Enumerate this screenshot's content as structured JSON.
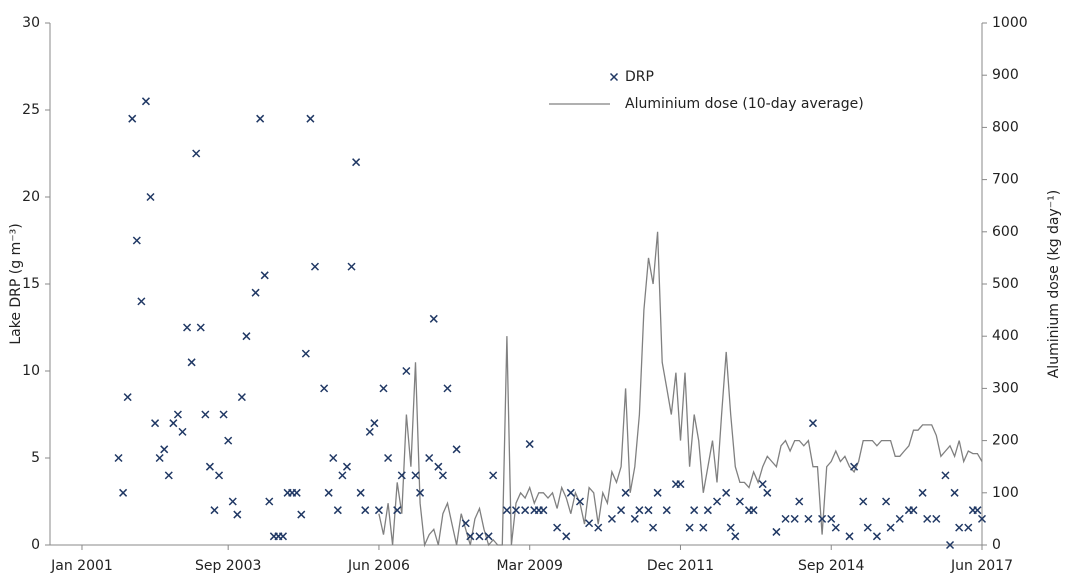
{
  "chart_data": {
    "type": "scatter",
    "ylabel": "Lake DRP (g m⁻³)",
    "y2label": "Aluminium dose (kg day⁻¹)",
    "xlim": [
      "2000-06",
      "2017-06"
    ],
    "xticks": [
      {
        "value": "2001-01",
        "label": "Jan 2001"
      },
      {
        "value": "2003-09",
        "label": "Sep 2003"
      },
      {
        "value": "2006-06",
        "label": "Jun 2006"
      },
      {
        "value": "2009-03",
        "label": "Mar 2009"
      },
      {
        "value": "2011-12",
        "label": "Dec 2011"
      },
      {
        "value": "2014-09",
        "label": "Sep 2014"
      },
      {
        "value": "2017-06",
        "label": "Jun 2017"
      }
    ],
    "ylim": [
      0,
      30
    ],
    "yticks": [
      0,
      5,
      10,
      15,
      20,
      25,
      30
    ],
    "y2lim": [
      0,
      1000
    ],
    "y2ticks": [
      0,
      100,
      200,
      300,
      400,
      500,
      600,
      700,
      800,
      900,
      1000
    ],
    "grid": false,
    "legend": "top",
    "series": [
      {
        "name": "DRP",
        "type": "scatter",
        "marker": "x",
        "color": "#203864",
        "x": [
          "2001-09",
          "2001-10",
          "2001-11",
          "2001-12",
          "2002-01",
          "2002-02",
          "2002-03",
          "2002-04",
          "2002-05",
          "2002-06",
          "2002-07",
          "2002-08",
          "2002-09",
          "2002-10",
          "2002-11",
          "2002-12",
          "2003-01",
          "2003-02",
          "2003-03",
          "2003-04",
          "2003-05",
          "2003-06",
          "2003-07",
          "2003-08",
          "2003-09",
          "2003-10",
          "2003-11",
          "2003-12",
          "2004-01",
          "2004-03",
          "2004-04",
          "2004-05",
          "2004-06",
          "2004-07",
          "2004-08",
          "2004-09",
          "2004-10",
          "2004-11",
          "2004-12",
          "2005-01",
          "2005-02",
          "2005-03",
          "2005-04",
          "2005-06",
          "2005-07",
          "2005-08",
          "2005-09",
          "2005-10",
          "2005-11",
          "2005-12",
          "2006-01",
          "2006-02",
          "2006-03",
          "2006-04",
          "2006-05",
          "2006-06",
          "2006-07",
          "2006-08",
          "2006-10",
          "2006-11",
          "2006-12",
          "2007-02",
          "2007-03",
          "2007-05",
          "2007-06",
          "2007-07",
          "2007-08",
          "2007-09",
          "2007-11",
          "2008-01",
          "2008-02",
          "2008-04",
          "2008-06",
          "2008-07",
          "2008-10",
          "2008-12",
          "2009-02",
          "2009-03",
          "2009-04",
          "2009-05",
          "2009-06",
          "2009-09",
          "2009-11",
          "2009-12",
          "2010-02",
          "2010-04",
          "2010-06",
          "2010-09",
          "2010-11",
          "2010-12",
          "2011-02",
          "2011-03",
          "2011-05",
          "2011-06",
          "2011-07",
          "2011-09",
          "2011-11",
          "2011-12",
          "2012-02",
          "2012-03",
          "2012-05",
          "2012-06",
          "2012-08",
          "2012-10",
          "2012-11",
          "2012-12",
          "2013-01",
          "2013-03",
          "2013-04",
          "2013-06",
          "2013-07",
          "2013-09",
          "2013-11",
          "2014-01",
          "2014-02",
          "2014-04",
          "2014-05",
          "2014-07",
          "2014-09",
          "2014-10",
          "2015-01",
          "2015-02",
          "2015-04",
          "2015-05",
          "2015-07",
          "2015-09",
          "2015-10",
          "2015-12",
          "2016-02",
          "2016-03",
          "2016-05",
          "2016-06",
          "2016-08",
          "2016-10",
          "2016-11",
          "2016-12",
          "2017-01",
          "2017-03",
          "2017-04",
          "2017-05",
          "2017-06"
        ],
        "values": [
          5,
          3,
          8.5,
          24.5,
          17.5,
          14,
          25.5,
          20,
          7,
          5,
          5.5,
          4,
          7,
          7.5,
          6.5,
          12.5,
          10.5,
          22.5,
          12.5,
          7.5,
          4.5,
          2,
          4,
          7.5,
          6,
          2.5,
          1.75,
          8.5,
          12,
          14.5,
          24.5,
          15.5,
          2.5,
          0.5,
          0.5,
          0.5,
          3,
          3,
          3,
          1.75,
          11,
          24.5,
          16,
          9,
          3,
          5,
          2,
          4,
          4.5,
          16,
          22,
          3,
          2,
          6.5,
          7,
          2,
          9,
          5,
          2,
          4,
          10,
          4,
          3,
          5,
          13,
          4.5,
          4,
          9,
          5.5,
          1.25,
          0.5,
          0.5,
          0.5,
          4,
          2,
          2,
          2,
          5.8,
          2,
          2,
          2,
          1,
          0.5,
          3,
          2.5,
          1.25,
          1,
          1.5,
          2,
          3,
          1.5,
          2,
          2,
          1,
          3,
          2,
          3.5,
          3.5,
          1,
          2,
          1,
          2,
          2.5,
          3,
          1,
          0.5,
          2.5,
          2,
          2,
          3.5,
          3,
          0.75,
          1.5,
          1.5,
          2.5,
          1.5,
          7,
          1.5,
          1.5,
          1,
          0.5,
          4.5,
          2.5,
          1,
          0.5,
          2.5,
          1,
          1.5,
          2,
          2,
          3,
          1.5,
          1.5,
          4,
          0,
          3,
          1,
          1,
          2,
          2,
          1.5
        ]
      },
      {
        "name": "Aluminium dose (10-day average)",
        "type": "line",
        "axis": "y2",
        "color": "#808080",
        "x": [
          "2006-06",
          "2006-07",
          "2006-08",
          "2006-09",
          "2006-10",
          "2006-11",
          "2006-12",
          "2007-01",
          "2007-02",
          "2007-03",
          "2007-04",
          "2007-05",
          "2007-06",
          "2007-07",
          "2007-08",
          "2007-09",
          "2007-10",
          "2007-11",
          "2007-12",
          "2008-01",
          "2008-02",
          "2008-03",
          "2008-04",
          "2008-05",
          "2008-06",
          "2008-07",
          "2008-08",
          "2008-09",
          "2008-10",
          "2008-11",
          "2008-12",
          "2009-01",
          "2009-02",
          "2009-03",
          "2009-04",
          "2009-05",
          "2009-06",
          "2009-07",
          "2009-08",
          "2009-09",
          "2009-10",
          "2009-11",
          "2009-12",
          "2010-01",
          "2010-02",
          "2010-03",
          "2010-04",
          "2010-05",
          "2010-06",
          "2010-07",
          "2010-08",
          "2010-09",
          "2010-10",
          "2010-11",
          "2010-12",
          "2011-01",
          "2011-02",
          "2011-03",
          "2011-04",
          "2011-05",
          "2011-06",
          "2011-07",
          "2011-08",
          "2011-09",
          "2011-10",
          "2011-11",
          "2011-12",
          "2012-01",
          "2012-02",
          "2012-03",
          "2012-04",
          "2012-05",
          "2012-06",
          "2012-07",
          "2012-08",
          "2012-09",
          "2012-10",
          "2012-11",
          "2012-12",
          "2013-01",
          "2013-02",
          "2013-03",
          "2013-04",
          "2013-05",
          "2013-06",
          "2013-07",
          "2013-08",
          "2013-09",
          "2013-10",
          "2013-11",
          "2013-12",
          "2014-01",
          "2014-02",
          "2014-03",
          "2014-04",
          "2014-05",
          "2014-06",
          "2014-07",
          "2014-08",
          "2014-09",
          "2014-10",
          "2014-11",
          "2014-12",
          "2015-01",
          "2015-02",
          "2015-03",
          "2015-04",
          "2015-05",
          "2015-06",
          "2015-07",
          "2015-08",
          "2015-09",
          "2015-10",
          "2015-11",
          "2015-12",
          "2016-01",
          "2016-02",
          "2016-03",
          "2016-04",
          "2016-05",
          "2016-06",
          "2016-07",
          "2016-08",
          "2016-09",
          "2016-10",
          "2016-11",
          "2016-12",
          "2017-01",
          "2017-02",
          "2017-03",
          "2017-04",
          "2017-05",
          "2017-06"
        ],
        "values": [
          60,
          20,
          80,
          0,
          120,
          60,
          250,
          150,
          350,
          80,
          0,
          20,
          30,
          0,
          60,
          80,
          40,
          0,
          60,
          30,
          0,
          50,
          70,
          30,
          0,
          10,
          0,
          0,
          400,
          0,
          80,
          100,
          90,
          110,
          80,
          100,
          100,
          90,
          100,
          70,
          110,
          90,
          60,
          100,
          80,
          40,
          110,
          100,
          40,
          100,
          80,
          140,
          120,
          150,
          300,
          100,
          150,
          250,
          450,
          550,
          500,
          600,
          350,
          300,
          250,
          330,
          200,
          330,
          150,
          250,
          200,
          100,
          150,
          200,
          120,
          250,
          370,
          250,
          150,
          120,
          120,
          110,
          140,
          120,
          150,
          170,
          160,
          150,
          190,
          200,
          180,
          200,
          200,
          190,
          200,
          150,
          150,
          20,
          150,
          160,
          180,
          160,
          170,
          150,
          140,
          160,
          200,
          200,
          200,
          190,
          200,
          200,
          200,
          170,
          170,
          180,
          190,
          220,
          220,
          230,
          230,
          230,
          210,
          170,
          180,
          190,
          170,
          200,
          160,
          180,
          175,
          175,
          160
        ]
      }
    ]
  }
}
